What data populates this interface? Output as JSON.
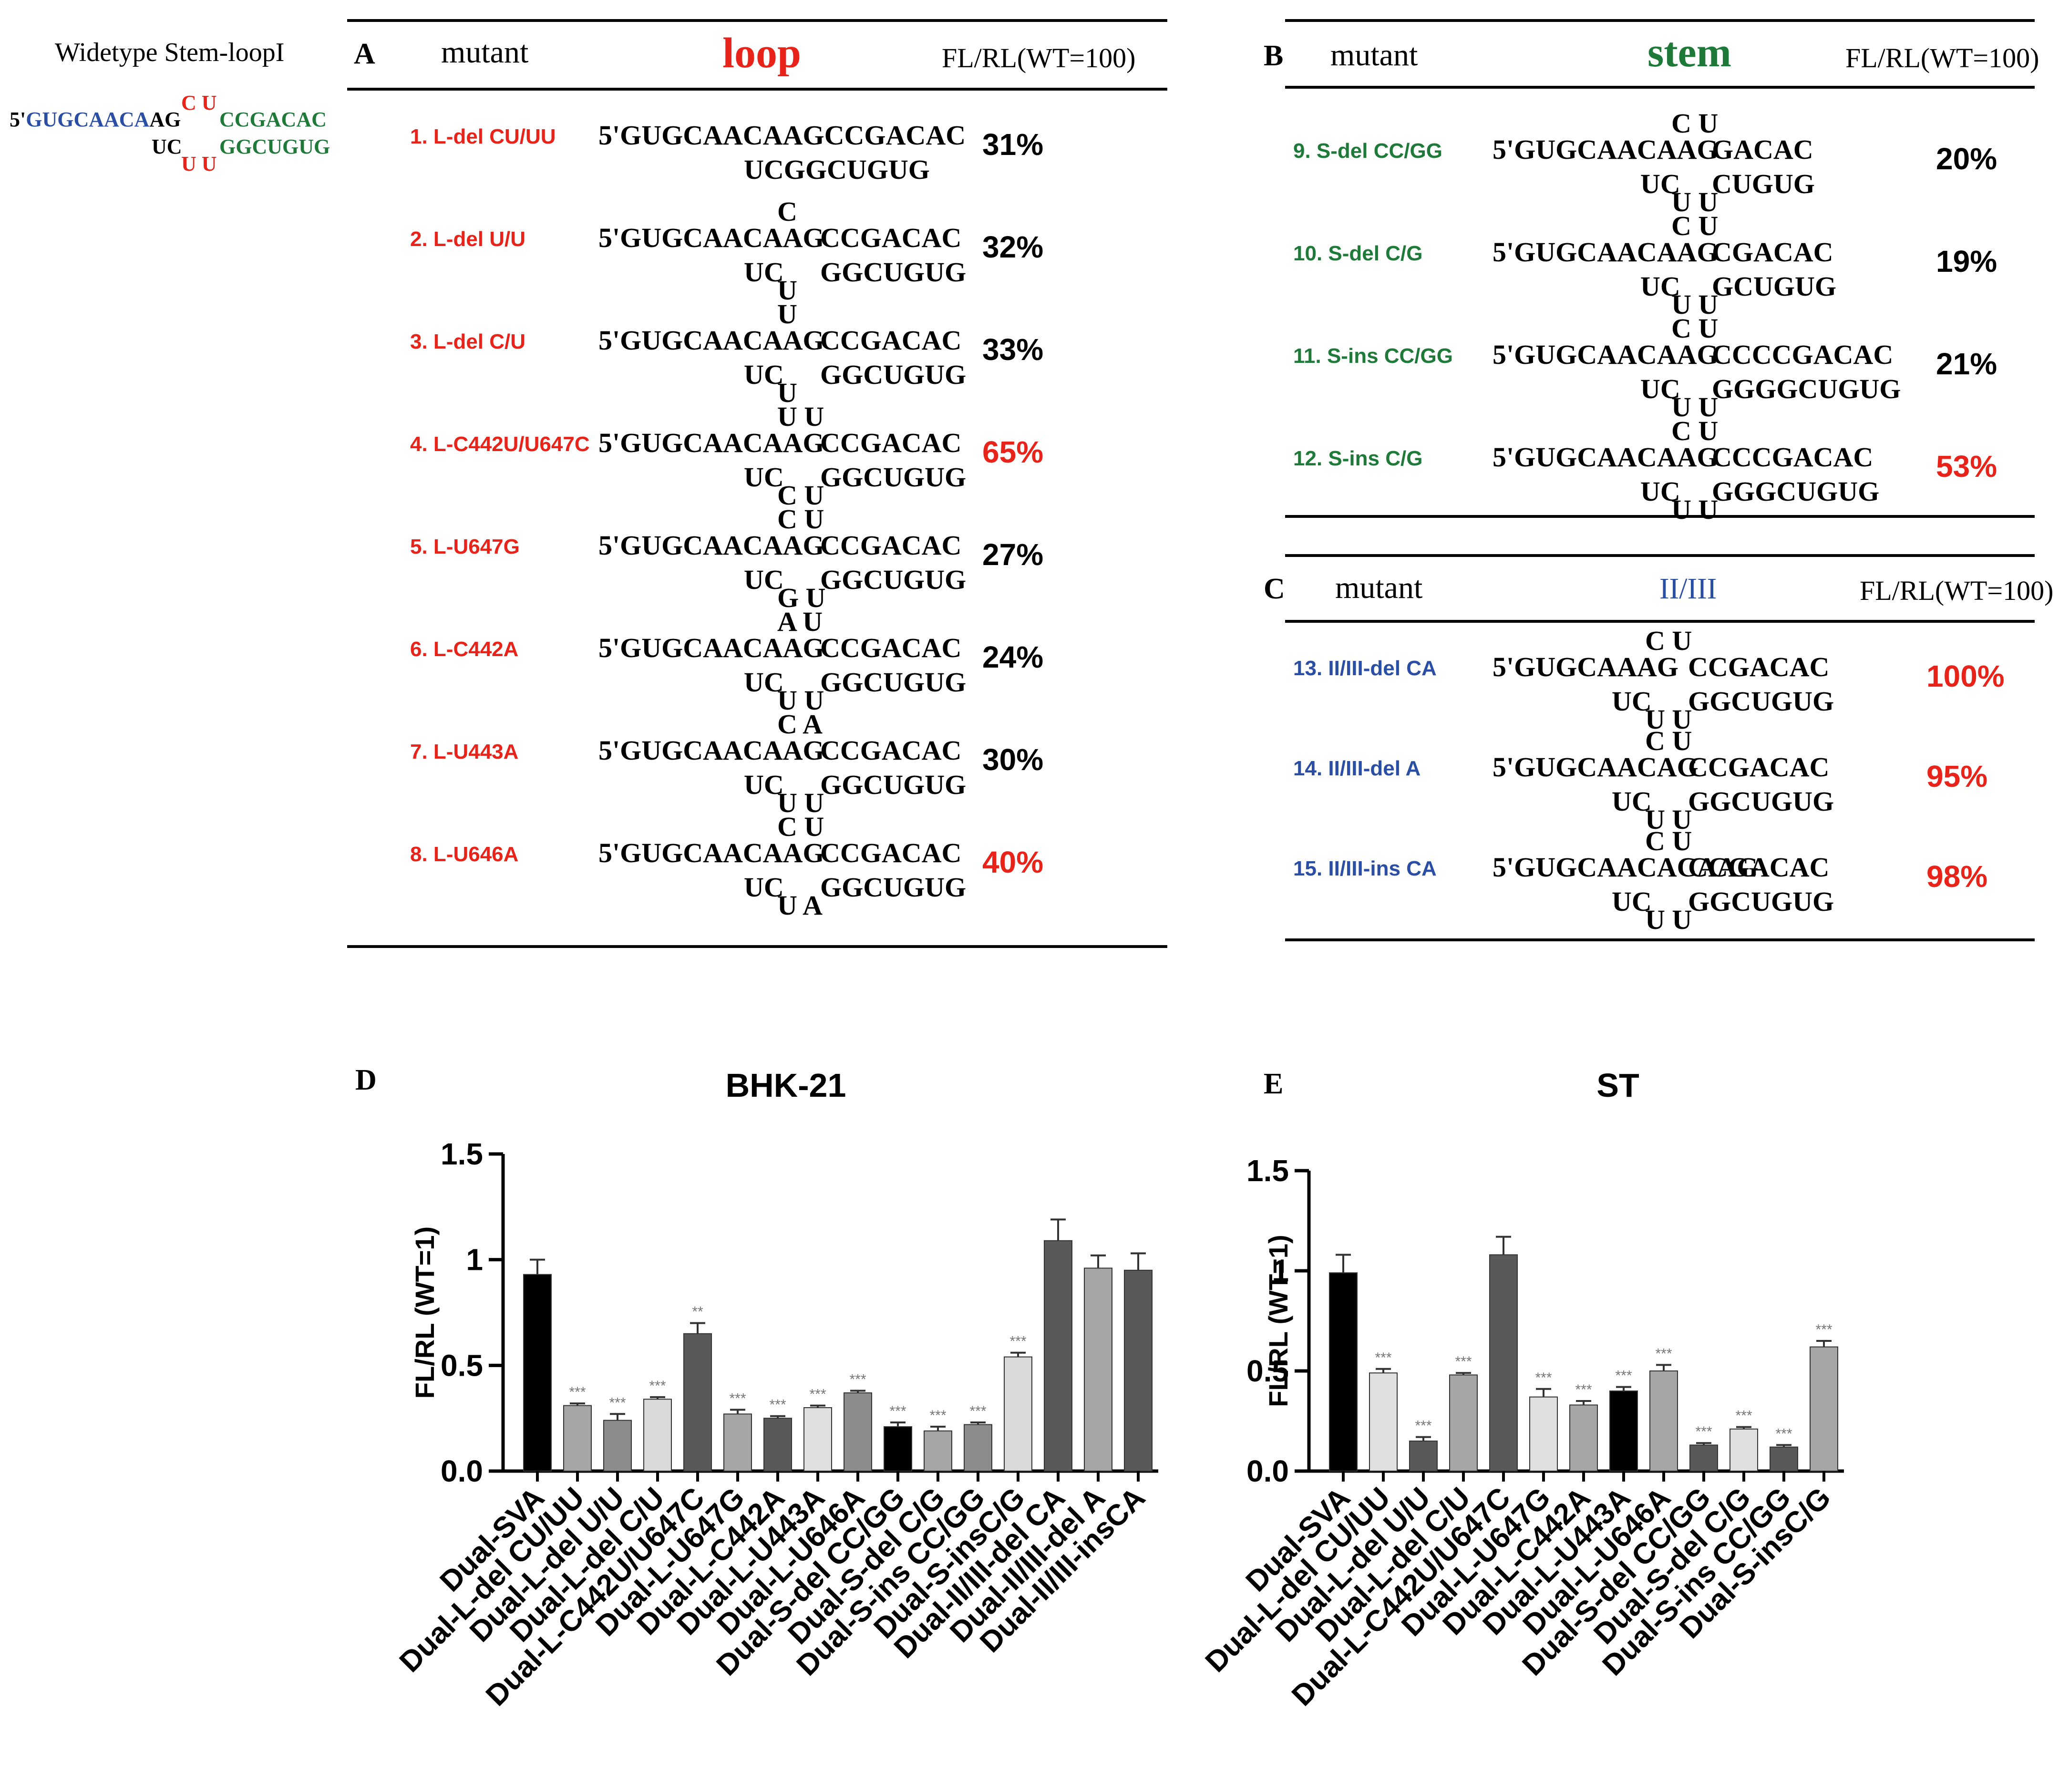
{
  "colors": {
    "loop_red": "#e8231a",
    "stem_green": "#1f7a3a",
    "blue": "#2a4ea3",
    "bar_black": "#000000",
    "bar_dark": "#595959",
    "bar_mid": "#8c8c8c",
    "bar_light": "#b3b3b3",
    "bar_pale": "#e0e0e0"
  },
  "wildtype": {
    "title": "Widetype  Stem-loopI",
    "prefix": "5'",
    "blue_part": "GUGCAACA",
    "black_part": "AG",
    "loop_top": "C U",
    "stem_top": "CCGACAC",
    "bottom_left": "UC",
    "loop_bottom": "U U",
    "stem_bottom": "GGCUGUG"
  },
  "panel_a": {
    "letter": "A",
    "col_mutant": "mutant",
    "col_region": "loop",
    "col_value": "FL/RL(WT=100)",
    "rows": [
      {
        "label": "1. L-del CU/UU",
        "top": "5'GUGCAACAAGCCGACAC",
        "loop_top": "",
        "bottom": "UCGGCUGUG",
        "loop_bottom": "",
        "value": "31%",
        "value_red": false
      },
      {
        "label": "2. L-del U/U",
        "top": "5'GUGCAACAAG",
        "loop_top": "C",
        "stem_top": "CCGACAC",
        "bottom": "UC",
        "loop_bottom": "U",
        "stem_bottom": "GGCUGUG",
        "value": "32%",
        "value_red": false
      },
      {
        "label": "3. L-del C/U",
        "top": "5'GUGCAACAAG",
        "loop_top": "U",
        "stem_top": "CCGACAC",
        "bottom": "UC",
        "loop_bottom": "U",
        "stem_bottom": "GGCUGUG",
        "value": "33%",
        "value_red": false
      },
      {
        "label": "4. L-C442U/U647C",
        "top": "5'GUGCAACAAG",
        "loop_top": "U U",
        "stem_top": "CCGACAC",
        "bottom": "UC",
        "loop_bottom": "C U",
        "stem_bottom": "GGCUGUG",
        "value": "65%",
        "value_red": true
      },
      {
        "label": "5. L-U647G",
        "top": "5'GUGCAACAAG",
        "loop_top": "C U",
        "stem_top": "CCGACAC",
        "bottom": "UC",
        "loop_bottom": "G U",
        "stem_bottom": "GGCUGUG",
        "value": "27%",
        "value_red": false
      },
      {
        "label": "6. L-C442A",
        "top": "5'GUGCAACAAG",
        "loop_top": "A U",
        "stem_top": "CCGACAC",
        "bottom": "UC",
        "loop_bottom": "U U",
        "stem_bottom": "GGCUGUG",
        "value": "24%",
        "value_red": false
      },
      {
        "label": "7. L-U443A",
        "top": "5'GUGCAACAAG",
        "loop_top": "C A",
        "stem_top": "CCGACAC",
        "bottom": "UC",
        "loop_bottom": "U U",
        "stem_bottom": "GGCUGUG",
        "value": "30%",
        "value_red": false
      },
      {
        "label": "8. L-U646A",
        "top": "5'GUGCAACAAG",
        "loop_top": "C U",
        "stem_top": "CCGACAC",
        "bottom": "UC",
        "loop_bottom": "U A",
        "stem_bottom": "GGCUGUG",
        "value": "40%",
        "value_red": true
      }
    ]
  },
  "panel_b": {
    "letter": "B",
    "col_mutant": "mutant",
    "col_region": "stem",
    "col_value": "FL/RL(WT=100)",
    "rows": [
      {
        "label": "9. S-del CC/GG",
        "top": "5'GUGCAACAAG",
        "loop_top": "C U",
        "stem_top": "GACAC",
        "bottom": "UC",
        "loop_bottom": "U U",
        "stem_bottom": "CUGUG",
        "value": "20%",
        "value_red": false
      },
      {
        "label": "10. S-del C/G",
        "top": "5'GUGCAACAAG",
        "loop_top": "C U",
        "stem_top": "CGACAC",
        "bottom": "UC",
        "loop_bottom": "U U",
        "stem_bottom": "GCUGUG",
        "value": "19%",
        "value_red": false
      },
      {
        "label": "11. S-ins CC/GG",
        "top": "5'GUGCAACAAG",
        "loop_top": "C U",
        "stem_top": "CCCCGACAC",
        "bottom": "UC",
        "loop_bottom": "U U",
        "stem_bottom": "GGGGCUGUG",
        "value": "21%",
        "value_red": false
      },
      {
        "label": "12. S-ins C/G",
        "top": "5'GUGCAACAAG",
        "loop_top": "C U",
        "stem_top": "CCCGACAC",
        "bottom": "UC",
        "loop_bottom": "U U",
        "stem_bottom": "GGGCUGUG",
        "value": "53%",
        "value_red": true
      }
    ]
  },
  "panel_c": {
    "letter": "C",
    "col_mutant": "mutant",
    "col_region": "II/III",
    "col_value": "FL/RL(WT=100)",
    "rows": [
      {
        "label": "13. II/III-del CA",
        "top": "5'GUGCAAAG",
        "loop_top": "C U",
        "stem_top": "CCGACAC",
        "bottom": "UC",
        "loop_bottom": "U U",
        "stem_bottom": "GGCUGUG",
        "value": "100%",
        "value_red": true
      },
      {
        "label": "14. II/III-del A",
        "top": "5'GUGCAACAG",
        "loop_top": "C U",
        "stem_top": "CCGACAC",
        "bottom": "UC",
        "loop_bottom": "U U",
        "stem_bottom": "GGCUGUG",
        "value": "95%",
        "value_red": true
      },
      {
        "label": "15. II/III-ins CA",
        "top": "5'GUGCAACACAAG",
        "loop_top": "C U",
        "stem_top": "CCGACAC",
        "bottom": "UC",
        "loop_bottom": "U U",
        "stem_bottom": "GGCUGUG",
        "value": "98%",
        "value_red": true
      }
    ]
  },
  "chart_data": [
    {
      "type": "bar",
      "panel": "D",
      "title": "BHK-21",
      "ylabel": "FL/RL (WT=1)",
      "ylim": [
        0,
        1.5
      ],
      "yticks": [
        "0.0",
        "0.5",
        "1",
        "1.5"
      ],
      "categories": [
        "Dual-SVA",
        "Dual-L-del CU/UU",
        "Dual-L-del U/U",
        "Dual-L-del C/U",
        "Dual-L-C442U/U647C",
        "Dual-L-U647G",
        "Dual-L-C442A",
        "Dual-L-U443A",
        "Dual-L-U646A",
        "Dual-S-del CC/GG",
        "Dual-S-del C/G",
        "Dual-S-ins CC/GG",
        "Dual-S-insC/G",
        "Dual-II/III-del CA",
        "Dual-II/III-del A",
        "Dual-II/III-insCA"
      ],
      "values": [
        0.93,
        0.31,
        0.24,
        0.34,
        0.65,
        0.27,
        0.25,
        0.3,
        0.37,
        0.21,
        0.19,
        0.22,
        0.54,
        1.09,
        0.96,
        0.95
      ],
      "errors": [
        0.07,
        0.01,
        0.03,
        0.01,
        0.05,
        0.02,
        0.01,
        0.01,
        0.01,
        0.02,
        0.02,
        0.01,
        0.02,
        0.1,
        0.06,
        0.08
      ],
      "significance": [
        "",
        "***",
        "***",
        "***",
        "**",
        "***",
        "***",
        "***",
        "***",
        "***",
        "***",
        "***",
        "***",
        "",
        "",
        ""
      ],
      "colors": [
        "#000000",
        "#a6a6a6",
        "#8c8c8c",
        "#d9d9d9",
        "#595959",
        "#a6a6a6",
        "#595959",
        "#e0e0e0",
        "#8c8c8c",
        "#000000",
        "#a6a6a6",
        "#8c8c8c",
        "#d9d9d9",
        "#595959",
        "#a6a6a6",
        "#595959"
      ]
    },
    {
      "type": "bar",
      "panel": "E",
      "title": "ST",
      "ylabel": "FL/RL (WT=1)",
      "ylim": [
        0,
        1.5
      ],
      "yticks": [
        "0.0",
        "0.5",
        "1",
        "1.5"
      ],
      "categories": [
        "Dual-SVA",
        "Dual-L-del CU/UU",
        "Dual-L-del U/U",
        "Dual-L-del C/U",
        "Dual-L-C442U/U647C",
        "Dual-L-U647G",
        "Dual-L-C442A",
        "Dual-L-U443A",
        "Dual-L-U646A",
        "Dual-S-del CC/GG",
        "Dual-S-del C/G",
        "Dual-S-ins CC/GG",
        "Dual-S-insC/G"
      ],
      "values": [
        0.99,
        0.49,
        0.15,
        0.48,
        1.08,
        0.37,
        0.33,
        0.4,
        0.5,
        0.13,
        0.21,
        0.12,
        0.62
      ],
      "errors": [
        0.09,
        0.02,
        0.02,
        0.01,
        0.09,
        0.04,
        0.02,
        0.02,
        0.03,
        0.01,
        0.01,
        0.01,
        0.03
      ],
      "significance": [
        "",
        "***",
        "***",
        "***",
        "",
        "***",
        "***",
        "***",
        "***",
        "***",
        "***",
        "***",
        "***"
      ],
      "colors": [
        "#000000",
        "#e0e0e0",
        "#595959",
        "#a6a6a6",
        "#595959",
        "#e0e0e0",
        "#a6a6a6",
        "#000000",
        "#a6a6a6",
        "#595959",
        "#e0e0e0",
        "#595959",
        "#a6a6a6"
      ]
    }
  ]
}
